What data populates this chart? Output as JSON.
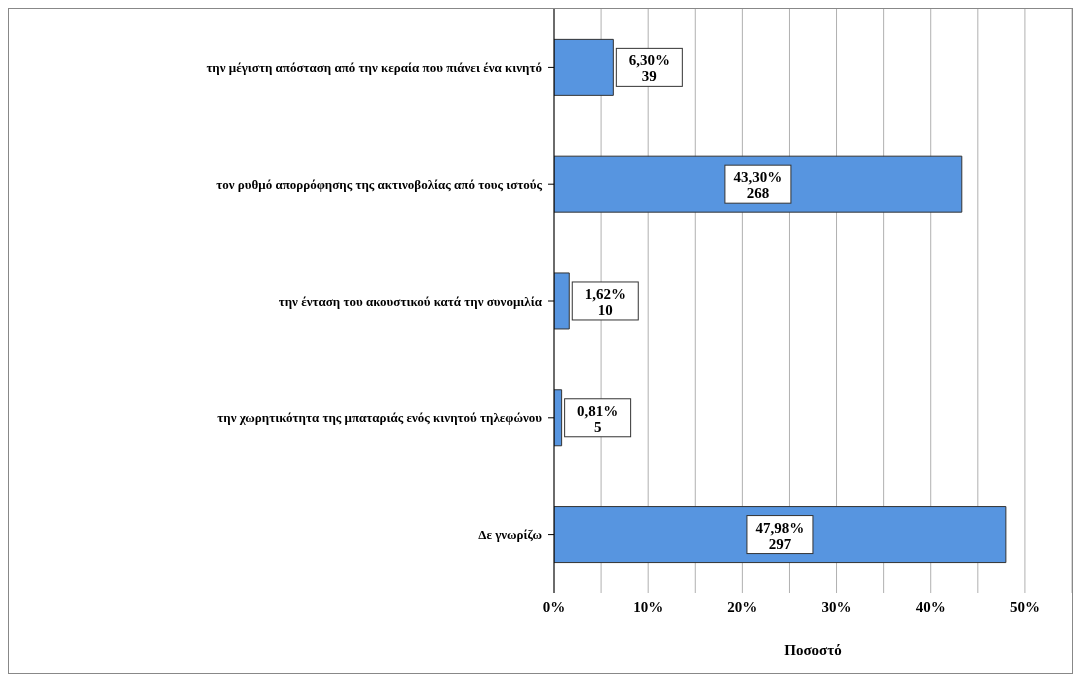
{
  "chart_data": {
    "type": "bar",
    "orientation": "horizontal",
    "xlabel": "Ποσοστό",
    "categories": [
      "την μέγιστη απόσταση από την κεραία που πιάνει ένα κινητό",
      "τον ρυθμό απορρόφησης της ακτινοβολίας από τους ιστούς",
      "την ένταση του ακουστικού κατά την συνομιλία",
      "την χωρητικότητα της μπαταριάς ενός κινητού τηλεφώνου",
      "Δε γνωρίζω"
    ],
    "values": [
      6.3,
      43.3,
      1.62,
      0.81,
      47.98
    ],
    "value_labels": [
      "6,30%\n39",
      "43,30%\n268",
      "1,62%\n10",
      "0,81%\n5",
      "47,98%\n297"
    ],
    "color": "#5795e0",
    "xlim": [
      0,
      55
    ],
    "xticks": [
      {
        "value": 0,
        "label": "0%"
      },
      {
        "value": 5,
        "label": null
      },
      {
        "value": 10,
        "label": "10%"
      },
      {
        "value": 15,
        "label": null
      },
      {
        "value": 20,
        "label": "20%"
      },
      {
        "value": 25,
        "label": null
      },
      {
        "value": 30,
        "label": "30%"
      },
      {
        "value": 35,
        "label": null
      },
      {
        "value": 40,
        "label": "40%"
      },
      {
        "value": 45,
        "label": null
      },
      {
        "value": 50,
        "label": "50%"
      },
      {
        "value": 55,
        "label": null
      }
    ],
    "grid": "x"
  }
}
